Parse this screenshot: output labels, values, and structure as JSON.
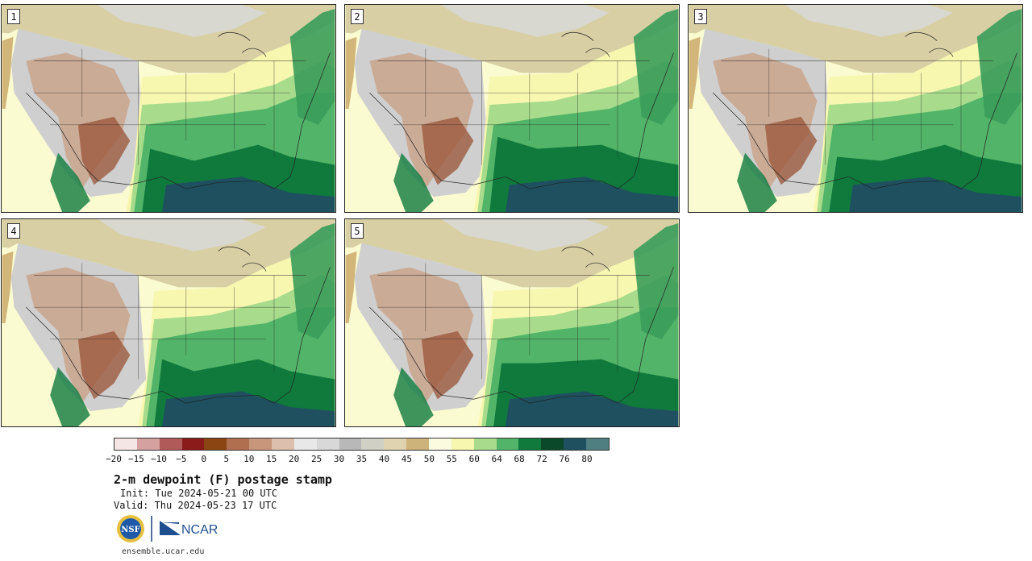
{
  "panels": [
    {
      "label": "1"
    },
    {
      "label": "2"
    },
    {
      "label": "3"
    },
    {
      "label": "4"
    },
    {
      "label": "5"
    }
  ],
  "colorbar": {
    "colors": [
      "#f5e6e6",
      "#d4a0a0",
      "#b05a5a",
      "#8b1a1a",
      "#8b4513",
      "#b07050",
      "#c8967a",
      "#dcbfac",
      "#e8e8e8",
      "#d8d8d8",
      "#b8b8b8",
      "#d0d0c4",
      "#e0d4b0",
      "#cdb27a",
      "#fbfbe0",
      "#f7f7b0",
      "#a8dc8c",
      "#52b468",
      "#0f7a3c",
      "#0a4a2a",
      "#1e5060",
      "#4f7f80"
    ],
    "ticks": [
      "−20",
      "−15",
      "−10",
      "−5",
      "0",
      "5",
      "10",
      "15",
      "20",
      "25",
      "30",
      "35",
      "40",
      "45",
      "50",
      "55",
      "60",
      "64",
      "68",
      "72",
      "76",
      "80"
    ]
  },
  "title": "2-m dewpoint (F) postage stamp",
  "init": "Init: Tue 2024-05-21 00 UTC",
  "valid": "Valid: Thu 2024-05-23 17 UTC",
  "logos": {
    "nsf": "NSF",
    "ncar": "NCAR"
  },
  "site": "ensemble.ucar.edu"
}
